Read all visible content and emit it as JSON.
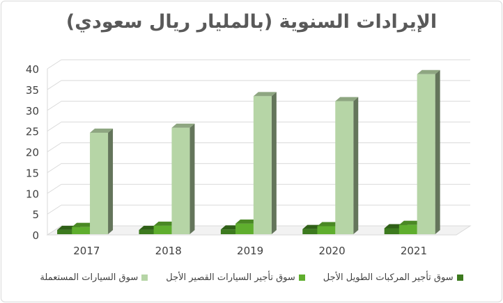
{
  "chart_data": {
    "type": "bar",
    "title": "الإيرادات السنوية (بالمليار ريال سعودي)",
    "categories": [
      "2017",
      "2018",
      "2019",
      "2020",
      "2021"
    ],
    "ylim": [
      0,
      40
    ],
    "yticks": [
      "0",
      "5",
      "10",
      "15",
      "20",
      "25",
      "30",
      "35",
      "40"
    ],
    "grid": true,
    "legend_position": "bottom",
    "series": [
      {
        "name": "سوق تأجير المركبات الطويل الأجل",
        "values": [
          1.2,
          1.2,
          1.3,
          1.4,
          1.6
        ],
        "color": "#3c7a1e"
      },
      {
        "name": "سوق تأجير السيارات القصير الأجل",
        "values": [
          1.9,
          2.2,
          2.7,
          2.1,
          2.4
        ],
        "color": "#5fae2e"
      },
      {
        "name": "سوق السيارات المستعملة",
        "values": [
          24.6,
          25.8,
          33.4,
          32.2,
          38.7
        ],
        "color": "#b6d5a6"
      }
    ]
  }
}
